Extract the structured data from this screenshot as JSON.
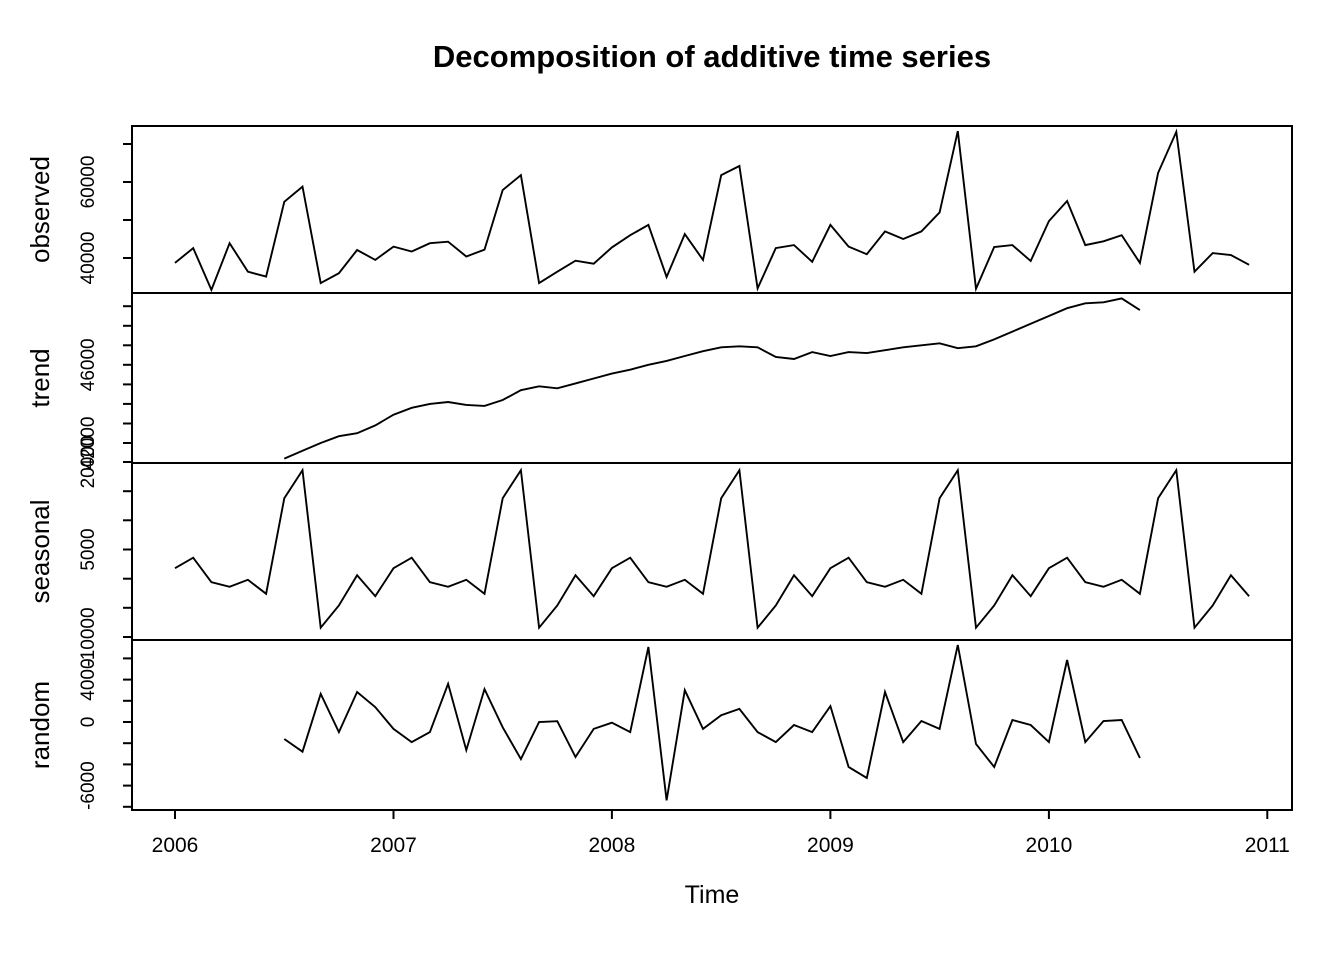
{
  "chart_data": {
    "type": "line",
    "title": "Decomposition of additive time series",
    "xlabel": "Time",
    "line_color": "#000000",
    "background_color": "#ffffff",
    "frequency": "monthly",
    "x_start_year": 2006,
    "n_months": 60,
    "x_axis": {
      "ticks": [
        2006,
        2007,
        2008,
        2009,
        2010,
        2011
      ],
      "range": [
        2005.803,
        2011.113
      ],
      "grid": false
    },
    "legend": "none",
    "panels": [
      {
        "label": "observed",
        "series_key": "observed",
        "ylim": [
          30789,
          74737
        ],
        "ticks": [
          40000,
          50000,
          60000,
          70000
        ],
        "labeled_ticks": [
          40000,
          60000
        ]
      },
      {
        "label": "trend",
        "series_key": "trend",
        "ylim": [
          40976,
          49677
        ],
        "ticks": [
          42000,
          43000,
          44000,
          45000,
          46000,
          47000,
          48000,
          49000
        ],
        "labeled_ticks": [
          42000,
          46000
        ]
      },
      {
        "label": "seasonal",
        "series_key": "seasonal",
        "ylim": [
          -10514,
          19829
        ],
        "ticks": [
          -10000,
          -5000,
          0,
          5000,
          10000,
          15000,
          20000
        ],
        "labeled_ticks": [
          -10000,
          5000,
          20000
        ]
      },
      {
        "label": "random",
        "series_key": "random",
        "ylim": [
          -8302,
          7736
        ],
        "ticks": [
          -8000,
          -6000,
          -4000,
          -2000,
          0,
          2000,
          4000,
          6000
        ],
        "labeled_ticks": [
          -6000,
          0,
          4000
        ]
      }
    ],
    "series": {
      "observed": {
        "start_month_index": 0,
        "values": [
          38700,
          42600,
          31600,
          43900,
          36400,
          35100,
          54800,
          58800,
          33400,
          36000,
          42100,
          39500,
          43000,
          41700,
          43900,
          44300,
          40400,
          42200,
          57900,
          61800,
          33400,
          36400,
          39300,
          38500,
          42800,
          46000,
          48700,
          35000,
          46300,
          39500,
          61800,
          64200,
          32000,
          42600,
          43400,
          39000,
          48700,
          43000,
          41000,
          47000,
          45000,
          47000,
          52000,
          73400,
          31900,
          42900,
          43400,
          39200,
          49700,
          55000,
          43400,
          44400,
          46000,
          38700,
          62400,
          73200,
          36400,
          41300,
          40800,
          38200
        ]
      },
      "trend": {
        "start_month_index": 6,
        "values": [
          41200,
          41600,
          42000,
          42350,
          42500,
          42900,
          43450,
          43800,
          44000,
          44100,
          43950,
          43900,
          44200,
          44700,
          44900,
          44800,
          45050,
          45300,
          45550,
          45750,
          46000,
          46200,
          46450,
          46700,
          46900,
          46950,
          46900,
          46400,
          46300,
          46650,
          46450,
          46650,
          46600,
          46750,
          46900,
          47000,
          47100,
          46850,
          46950,
          47300,
          47700,
          48100,
          48500,
          48900,
          49150,
          49200,
          49400,
          48800
        ]
      },
      "seasonal": {
        "start_month_index": 0,
        "n": 60,
        "pattern_by_month": [
          1800,
          3600,
          -600,
          -1400,
          -200,
          -2600,
          13800,
          18600,
          -8400,
          -4600,
          600,
          -3000
        ]
      },
      "random": {
        "start_month_index": 6,
        "values": [
          -1600,
          -2800,
          2650,
          -950,
          2830,
          1400,
          -650,
          -1900,
          -950,
          3600,
          -2650,
          3100,
          -500,
          -3500,
          0,
          80,
          -3300,
          -650,
          -70,
          -950,
          7075,
          -7400,
          3000,
          -650,
          640,
          1240,
          -950,
          -1900,
          -280,
          -950,
          1500,
          -4250,
          -5280,
          2830,
          -1900,
          90,
          -650,
          7260,
          -2075,
          -4250,
          190,
          -280,
          -1900,
          5850,
          -1900,
          90,
          190,
          -3400
        ]
      }
    }
  }
}
